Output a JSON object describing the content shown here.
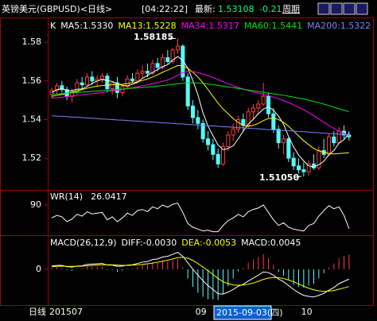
{
  "header": {
    "title": "英镑美元(GBPUSD)<日线>",
    "time": "[04:22:22]",
    "latest_label": "最新:",
    "latest": "1.53108",
    "change": "-0.21",
    "period": "周期"
  },
  "footer": {
    "period": "日线",
    "cursor_date": "2015-09-03(四)"
  },
  "chart_data": [
    {
      "type": "candlestick",
      "label": "K",
      "ylim": [
        1.504,
        1.592
      ],
      "yticks": [
        1.52,
        1.54,
        1.56,
        1.58
      ],
      "up_color": "#ff3c3c",
      "down_color": "#54fcfc",
      "open": [
        1.553,
        1.555,
        1.5575,
        1.5555,
        1.552,
        1.5545,
        1.559,
        1.558,
        1.562,
        1.56,
        1.561,
        1.5625,
        1.556,
        1.559,
        1.554,
        1.557,
        1.561,
        1.56,
        1.564,
        1.565,
        1.564,
        1.569,
        1.567,
        1.572,
        1.57,
        1.576,
        1.578,
        1.562,
        1.547,
        1.541,
        1.538,
        1.53,
        1.527,
        1.522,
        1.517,
        1.526,
        1.532,
        1.535,
        1.54,
        1.537,
        1.544,
        1.546,
        1.548,
        1.552,
        1.543,
        1.535,
        1.528,
        1.53,
        1.52,
        1.516,
        1.514,
        1.513,
        1.517,
        1.515,
        1.524,
        1.522,
        1.531,
        1.528,
        1.534,
        1.532
      ],
      "high": [
        1.5565,
        1.559,
        1.56,
        1.557,
        1.556,
        1.561,
        1.562,
        1.564,
        1.565,
        1.563,
        1.564,
        1.564,
        1.56,
        1.562,
        1.558,
        1.563,
        1.564,
        1.566,
        1.568,
        1.569,
        1.571,
        1.572,
        1.574,
        1.576,
        1.577,
        1.58185,
        1.579,
        1.564,
        1.55,
        1.545,
        1.54,
        1.534,
        1.53,
        1.525,
        1.528,
        1.534,
        1.538,
        1.542,
        1.543,
        1.546,
        1.548,
        1.55,
        1.559,
        1.554,
        1.546,
        1.537,
        1.532,
        1.531,
        1.523,
        1.52,
        1.518,
        1.519,
        1.522,
        1.526,
        1.53,
        1.533,
        1.534,
        1.536,
        1.537,
        1.534
      ],
      "low": [
        1.551,
        1.553,
        1.554,
        1.55,
        1.549,
        1.553,
        1.556,
        1.557,
        1.558,
        1.557,
        1.559,
        1.554,
        1.553,
        1.551,
        1.552,
        1.556,
        1.559,
        1.559,
        1.561,
        1.562,
        1.563,
        1.565,
        1.566,
        1.569,
        1.569,
        1.574,
        1.56,
        1.545,
        1.538,
        1.535,
        1.528,
        1.524,
        1.519,
        1.515,
        1.516,
        1.524,
        1.529,
        1.533,
        1.534,
        1.536,
        1.54,
        1.543,
        1.547,
        1.541,
        1.533,
        1.525,
        1.522,
        1.518,
        1.514,
        1.512,
        1.5105,
        1.511,
        1.514,
        1.514,
        1.52,
        1.521,
        1.526,
        1.527,
        1.53,
        1.529
      ],
      "close": [
        1.555,
        1.5575,
        1.5555,
        1.552,
        1.5545,
        1.559,
        1.558,
        1.562,
        1.56,
        1.561,
        1.5625,
        1.556,
        1.559,
        1.554,
        1.557,
        1.561,
        1.56,
        1.564,
        1.565,
        1.564,
        1.569,
        1.567,
        1.572,
        1.57,
        1.576,
        1.578,
        1.562,
        1.547,
        1.541,
        1.538,
        1.53,
        1.527,
        1.522,
        1.517,
        1.526,
        1.532,
        1.535,
        1.54,
        1.537,
        1.544,
        1.546,
        1.548,
        1.552,
        1.543,
        1.535,
        1.528,
        1.53,
        1.52,
        1.516,
        1.514,
        1.513,
        1.517,
        1.515,
        1.524,
        1.522,
        1.531,
        1.528,
        1.534,
        1.532,
        1.53108
      ],
      "series": [
        {
          "name": "MA5:1.5330",
          "color": "#ffffff",
          "values": [
            1.554,
            1.5555,
            1.556,
            1.555,
            1.5549,
            1.5557,
            1.5558,
            1.5571,
            1.5587,
            1.56,
            1.5607,
            1.5603,
            1.5597,
            1.5585,
            1.5577,
            1.5574,
            1.5582,
            1.5592,
            1.5614,
            1.5628,
            1.5644,
            1.5658,
            1.5674,
            1.5684,
            1.5708,
            1.5726,
            1.5706,
            1.5666,
            1.5602,
            1.5528,
            1.5436,
            1.5366,
            1.5316,
            1.5268,
            1.5244,
            1.525,
            1.5264,
            1.53,
            1.534,
            1.5376,
            1.5402,
            1.543,
            1.5454,
            1.5466,
            1.5448,
            1.5418,
            1.5376,
            1.5312,
            1.5258,
            1.5216,
            1.5186,
            1.516,
            1.5154,
            1.5166,
            1.5184,
            1.5218,
            1.524,
            1.5278,
            1.5296,
            1.533
          ]
        },
        {
          "name": "MA13:1.5228",
          "color": "#ffff00",
          "values": [
            1.552,
            1.5525,
            1.553,
            1.5535,
            1.554,
            1.5548,
            1.5555,
            1.5562,
            1.5568,
            1.5573,
            1.5576,
            1.5578,
            1.558,
            1.5582,
            1.5583,
            1.5586,
            1.559,
            1.5595,
            1.5602,
            1.561,
            1.562,
            1.5632,
            1.5645,
            1.5656,
            1.5668,
            1.568,
            1.5678,
            1.5665,
            1.5645,
            1.562,
            1.559,
            1.5555,
            1.552,
            1.5485,
            1.5455,
            1.543,
            1.5405,
            1.5385,
            1.537,
            1.5365,
            1.537,
            1.538,
            1.5395,
            1.5405,
            1.5408,
            1.54,
            1.5385,
            1.5365,
            1.534,
            1.5315,
            1.529,
            1.527,
            1.525,
            1.5238,
            1.523,
            1.5225,
            1.5222,
            1.5224,
            1.5226,
            1.5228
          ]
        },
        {
          "name": "MA34:1.5317",
          "color": "#ff00ff",
          "values": [
            1.551,
            1.5513,
            1.5516,
            1.5519,
            1.5522,
            1.5525,
            1.5528,
            1.5531,
            1.5534,
            1.5537,
            1.554,
            1.5544,
            1.5548,
            1.5552,
            1.5556,
            1.556,
            1.5565,
            1.557,
            1.5575,
            1.558,
            1.5586,
            1.5592,
            1.5598,
            1.5605,
            1.5615,
            1.563,
            1.5642,
            1.565,
            1.5648,
            1.5643,
            1.5636,
            1.5628,
            1.5618,
            1.5607,
            1.5596,
            1.5585,
            1.5575,
            1.5566,
            1.5558,
            1.555,
            1.5543,
            1.5537,
            1.5531,
            1.5524,
            1.5516,
            1.5508,
            1.5498,
            1.5488,
            1.5476,
            1.5464,
            1.545,
            1.5436,
            1.542,
            1.5403,
            1.5386,
            1.537,
            1.5354,
            1.534,
            1.5328,
            1.5317
          ]
        },
        {
          "name": "MA60:1.5441",
          "color": "#00e600",
          "values": [
            1.553,
            1.5532,
            1.5534,
            1.5536,
            1.5538,
            1.554,
            1.5542,
            1.5544,
            1.5546,
            1.5548,
            1.555,
            1.5552,
            1.5554,
            1.5556,
            1.5558,
            1.556,
            1.5562,
            1.5564,
            1.5566,
            1.5568,
            1.557,
            1.5573,
            1.5576,
            1.5579,
            1.5582,
            1.5585,
            1.5588,
            1.559,
            1.559,
            1.5589,
            1.5587,
            1.5584,
            1.5581,
            1.5577,
            1.5573,
            1.5569,
            1.5565,
            1.5561,
            1.5557,
            1.5553,
            1.5549,
            1.5545,
            1.5541,
            1.5537,
            1.5533,
            1.5529,
            1.5525,
            1.5521,
            1.5516,
            1.5511,
            1.5506,
            1.55,
            1.5494,
            1.5487,
            1.548,
            1.5472,
            1.5464,
            1.5456,
            1.5448,
            1.5441
          ]
        },
        {
          "name": "MA200:1.5322",
          "color": "#8080ff",
          "values": [
            1.542,
            1.5418,
            1.5417,
            1.5415,
            1.5413,
            1.5412,
            1.541,
            1.5408,
            1.5407,
            1.5405,
            1.5403,
            1.5402,
            1.54,
            1.5398,
            1.5397,
            1.5395,
            1.5393,
            1.5392,
            1.539,
            1.5388,
            1.5387,
            1.5385,
            1.5383,
            1.5382,
            1.538,
            1.5378,
            1.5377,
            1.5375,
            1.5373,
            1.5372,
            1.537,
            1.5368,
            1.5367,
            1.5365,
            1.5363,
            1.5362,
            1.536,
            1.5358,
            1.5357,
            1.5355,
            1.5353,
            1.5352,
            1.535,
            1.5348,
            1.5347,
            1.5345,
            1.5343,
            1.5342,
            1.534,
            1.5338,
            1.5337,
            1.5335,
            1.5333,
            1.5332,
            1.533,
            1.5328,
            1.5327,
            1.5325,
            1.5323,
            1.5322
          ]
        }
      ],
      "annotations": [
        {
          "text": "1.58185"
        },
        {
          "text": "1.51050"
        }
      ]
    },
    {
      "type": "line",
      "title": "WR(14)",
      "readout": "26.0417",
      "ylim": [
        15,
        120
      ],
      "yticks": [
        90
      ],
      "series": [
        {
          "color": "#ffffff",
          "values": [
            55,
            62,
            58,
            45,
            52,
            65,
            60,
            72,
            66,
            68,
            70,
            50,
            58,
            45,
            55,
            68,
            62,
            75,
            78,
            72,
            85,
            80,
            90,
            84,
            92,
            95,
            70,
            40,
            30,
            25,
            20,
            22,
            18,
            18,
            35,
            48,
            55,
            65,
            58,
            72,
            78,
            82,
            90,
            70,
            50,
            35,
            42,
            30,
            25,
            22,
            20,
            35,
            40,
            60,
            75,
            88,
            80,
            85,
            62,
            26.0417
          ]
        }
      ]
    },
    {
      "type": "macd",
      "title": "MACD(26,12,9)",
      "ylim": [
        -0.0105,
        0.0095
      ],
      "yticks": [
        0
      ],
      "categories": [
        "201507",
        null,
        null,
        null,
        null,
        null,
        null,
        null,
        null,
        null,
        null,
        null,
        null,
        null,
        null,
        null,
        null,
        null,
        null,
        null,
        null,
        null,
        null,
        null,
        null,
        null,
        null,
        null,
        null,
        "09",
        null,
        null,
        null,
        null,
        null,
        null,
        null,
        null,
        null,
        null,
        null,
        null,
        null,
        null,
        null,
        null,
        null,
        null,
        null,
        null,
        "10",
        null,
        null,
        null,
        null,
        null,
        null,
        null,
        null,
        null
      ],
      "up_color": "#ff3c3c",
      "down_color": "#54fcfc",
      "series": [
        {
          "name": "DIFF:-0.0030",
          "color": "#ffffff",
          "values": [
            0.001,
            0.0012,
            0.0012,
            0.0008,
            0.0007,
            0.001,
            0.0011,
            0.0015,
            0.0016,
            0.0017,
            0.0018,
            0.0013,
            0.0013,
            0.0009,
            0.001,
            0.0013,
            0.0014,
            0.0018,
            0.0022,
            0.0024,
            0.003,
            0.0032,
            0.0038,
            0.004,
            0.0046,
            0.0052,
            0.004,
            0.002,
            0.0,
            -0.0018,
            -0.0035,
            -0.005,
            -0.0062,
            -0.0075,
            -0.0076,
            -0.007,
            -0.0062,
            -0.0052,
            -0.0046,
            -0.0036,
            -0.0027,
            -0.0018,
            -0.0008,
            -0.001,
            -0.0018,
            -0.003,
            -0.0038,
            -0.005,
            -0.0062,
            -0.0072,
            -0.008,
            -0.0083,
            -0.0085,
            -0.008,
            -0.0074,
            -0.0064,
            -0.0056,
            -0.0044,
            -0.0037,
            -0.003
          ]
        },
        {
          "name": "DEA:-0.0053",
          "color": "#ffff00",
          "values": [
            0.0008,
            0.0009,
            0.001,
            0.0009,
            0.0009,
            0.0009,
            0.001,
            0.0011,
            0.0012,
            0.0013,
            0.0014,
            0.0014,
            0.0014,
            0.0013,
            0.0012,
            0.0012,
            0.0013,
            0.0014,
            0.0015,
            0.0017,
            0.0019,
            0.0022,
            0.0025,
            0.0028,
            0.0032,
            0.0036,
            0.0037,
            0.0034,
            0.0027,
            0.0018,
            0.0007,
            -0.0004,
            -0.0016,
            -0.0028,
            -0.0038,
            -0.0044,
            -0.0048,
            -0.0049,
            -0.0048,
            -0.0046,
            -0.0042,
            -0.0037,
            -0.0031,
            -0.0027,
            -0.0025,
            -0.0026,
            -0.0028,
            -0.0033,
            -0.0038,
            -0.0045,
            -0.0052,
            -0.0058,
            -0.0063,
            -0.0066,
            -0.0068,
            -0.0067,
            -0.0065,
            -0.0061,
            -0.0057,
            -0.0053
          ]
        }
      ],
      "bars": {
        "name": "MACD:0.0045",
        "values": [
          0.0004,
          0.0006,
          0.0004,
          -0.0002,
          -0.0004,
          0.0002,
          0.0002,
          0.0008,
          0.0008,
          0.0008,
          0.0008,
          -0.0002,
          -0.0002,
          -0.0008,
          -0.0004,
          0.0002,
          0.0002,
          0.0008,
          0.0014,
          0.0014,
          0.0022,
          0.002,
          0.0026,
          0.0024,
          0.0028,
          0.0032,
          0.0006,
          -0.0028,
          -0.0054,
          -0.0072,
          -0.0084,
          -0.0092,
          -0.0092,
          -0.0094,
          -0.0076,
          -0.0052,
          -0.0028,
          -0.0006,
          0.0004,
          0.002,
          0.003,
          0.0038,
          0.0046,
          0.0034,
          0.0014,
          -0.0008,
          -0.002,
          -0.0034,
          -0.0048,
          -0.0054,
          -0.0056,
          -0.005,
          -0.0044,
          -0.0028,
          -0.0012,
          0.0006,
          0.0018,
          0.0034,
          0.004,
          0.0045
        ]
      }
    }
  ]
}
